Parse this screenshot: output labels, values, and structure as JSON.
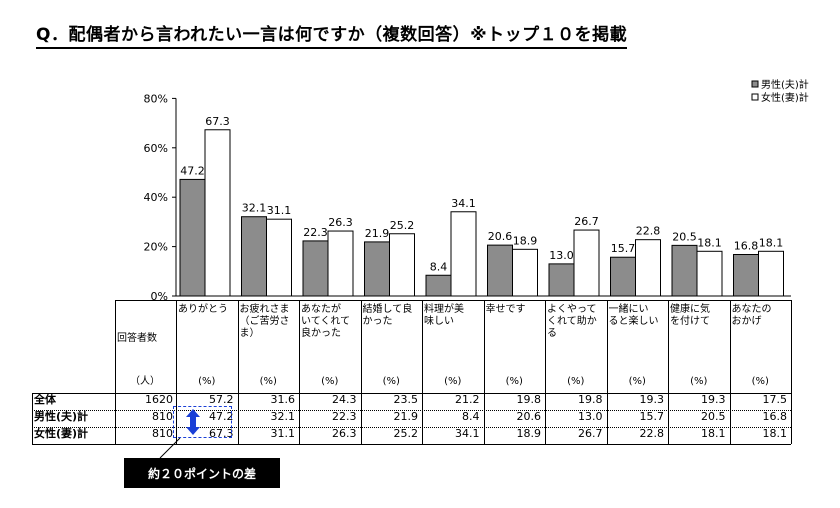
{
  "title": "Q．配偶者から言われたい一言は何ですか（複数回答）※トップ１０を掲載",
  "chart_data": {
    "type": "bar",
    "categories": [
      "ありがとう",
      "お疲れさま（ご苦労さま）",
      "あなたがいてくれて良かった",
      "結婚して良かった",
      "料理が美味しい",
      "幸せです",
      "よくやってくれて助かる",
      "一緒にいると楽しい",
      "健康に気を付けて",
      "あなたのおかげ"
    ],
    "series": [
      {
        "name": "男性(夫)計",
        "color": "#8c8c8c",
        "values": [
          47.2,
          32.1,
          22.3,
          21.9,
          8.4,
          20.6,
          13.0,
          15.7,
          20.5,
          16.8
        ]
      },
      {
        "name": "女性(妻)計",
        "color": "#ffffff",
        "values": [
          67.3,
          31.1,
          26.3,
          25.2,
          34.1,
          18.9,
          26.7,
          22.8,
          18.1,
          18.1
        ]
      }
    ],
    "yticks": [
      "0%",
      "20%",
      "40%",
      "60%",
      "80%"
    ],
    "ylim": [
      0,
      80
    ],
    "legend_position": "top-right"
  },
  "table": {
    "header_label": "回答者数",
    "category_headers": [
      "ありがとう",
      "お疲れさま\n（ご苦労さ\nま）",
      "あなたが\nいてくれて\n良かった",
      "結婚して良\nかった",
      "料理が美\n味しい",
      "幸せです",
      "よくやって\nくれて助か\nる",
      "一緒にい\nると楽しい",
      "健康に気\nを付けて",
      "あなたの\nおかげ"
    ],
    "count_unit": "（人）",
    "pct_unit": "(%)",
    "rows": [
      {
        "label": "全体",
        "count": "1620",
        "values": [
          "57.2",
          "31.6",
          "24.3",
          "23.5",
          "21.2",
          "19.8",
          "19.8",
          "19.3",
          "19.3",
          "17.5"
        ]
      },
      {
        "label": "男性(夫)計",
        "count": "810",
        "values": [
          "47.2",
          "32.1",
          "22.3",
          "21.9",
          "8.4",
          "20.6",
          "13.0",
          "15.7",
          "20.5",
          "16.8"
        ]
      },
      {
        "label": "女性(妻)計",
        "count": "810",
        "values": [
          "67.3",
          "31.1",
          "26.3",
          "25.2",
          "34.1",
          "18.9",
          "26.7",
          "22.8",
          "18.1",
          "18.1"
        ]
      }
    ]
  },
  "callout": "約２０ポイントの差",
  "accent_color": "#1a3fd6"
}
